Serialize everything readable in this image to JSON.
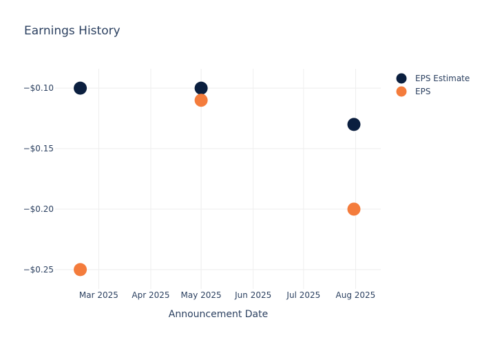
{
  "chart_data": {
    "type": "scatter",
    "title": "Earnings History",
    "xlabel": "Announcement Date",
    "ylabel": "",
    "x_ticks": [
      {
        "date": "2025-03-01",
        "label": "Mar 2025"
      },
      {
        "date": "2025-04-01",
        "label": "Apr 2025"
      },
      {
        "date": "2025-05-01",
        "label": "May 2025"
      },
      {
        "date": "2025-06-01",
        "label": "Jun 2025"
      },
      {
        "date": "2025-07-01",
        "label": "Jul 2025"
      },
      {
        "date": "2025-08-01",
        "label": "Aug 2025"
      }
    ],
    "xlim": [
      "2025-02-03",
      "2025-08-16"
    ],
    "y_ticks": [
      {
        "value": -0.1,
        "label": "−$0.10"
      },
      {
        "value": -0.15,
        "label": "−$0.15"
      },
      {
        "value": -0.2,
        "label": "−$0.20"
      },
      {
        "value": -0.25,
        "label": "−$0.25"
      }
    ],
    "ylim": [
      -0.266,
      -0.084
    ],
    "grid": true,
    "legend_position": "top-right",
    "series": [
      {
        "name": "EPS Estimate",
        "color": "#0b1f3f",
        "points": [
          {
            "x": "2025-02-18",
            "y": -0.1
          },
          {
            "x": "2025-05-01",
            "y": -0.1
          },
          {
            "x": "2025-07-31",
            "y": -0.13
          }
        ]
      },
      {
        "name": "EPS",
        "color": "#f47c3c",
        "points": [
          {
            "x": "2025-02-18",
            "y": -0.25
          },
          {
            "x": "2025-05-01",
            "y": -0.11
          },
          {
            "x": "2025-07-31",
            "y": -0.2
          }
        ]
      }
    ]
  }
}
